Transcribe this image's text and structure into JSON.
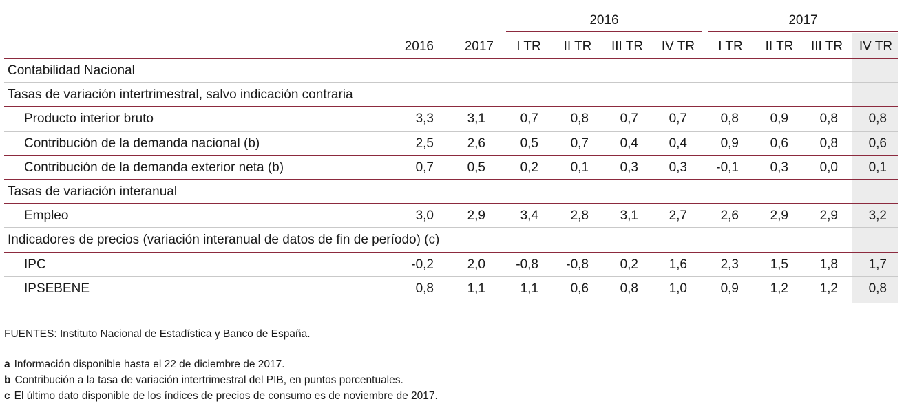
{
  "group_headers": [
    "2016",
    "2017"
  ],
  "columns": [
    "2016",
    "2017",
    "I TR",
    "II TR",
    "III TR",
    "IV TR",
    "I TR",
    "II TR",
    "III TR",
    "IV TR"
  ],
  "sections": [
    {
      "label": "Contabilidad Nacional"
    },
    {
      "label": "Tasas de variación intertrimestral, salvo indicación contraria"
    },
    {
      "label": "Tasas de variación interanual"
    },
    {
      "label": "Indicadores de precios (variación interanual de datos de fin de período) (c)"
    }
  ],
  "rows": [
    {
      "label": "Producto interior bruto",
      "values": [
        "3,3",
        "3,1",
        "0,7",
        "0,8",
        "0,7",
        "0,7",
        "0,8",
        "0,9",
        "0,8",
        "0,8"
      ]
    },
    {
      "label": "Contribución de la demanda nacional (b)",
      "values": [
        "2,5",
        "2,6",
        "0,5",
        "0,7",
        "0,4",
        "0,4",
        "0,9",
        "0,6",
        "0,8",
        "0,6"
      ]
    },
    {
      "label": "Contribución de la demanda exterior neta (b)",
      "values": [
        "0,7",
        "0,5",
        "0,2",
        "0,1",
        "0,3",
        "0,3",
        "-0,1",
        "0,3",
        "0,0",
        "0,1"
      ]
    },
    {
      "label": "Empleo",
      "values": [
        "3,0",
        "2,9",
        "3,4",
        "2,8",
        "3,1",
        "2,7",
        "2,6",
        "2,9",
        "2,9",
        "3,2"
      ]
    },
    {
      "label": "IPC",
      "values": [
        "-0,2",
        "2,0",
        "-0,8",
        "-0,8",
        "0,2",
        "1,6",
        "2,3",
        "1,5",
        "1,8",
        "1,7"
      ]
    },
    {
      "label": "IPSEBENE",
      "values": [
        "0,8",
        "1,1",
        "1,1",
        "0,6",
        "0,8",
        "1,0",
        "0,9",
        "1,2",
        "1,2",
        "0,8"
      ]
    }
  ],
  "sources": "FUENTES: Instituto Nacional de Estadística y Banco de España.",
  "notes": [
    {
      "key": "a",
      "text": "Información disponible hasta el 22 de diciembre de 2017."
    },
    {
      "key": "b",
      "text": "Contribución a la tasa de variación intertrimestral del PIB, en puntos porcentuales."
    },
    {
      "key": "c",
      "text": "El último dato disponible de los índices de precios de consumo es de noviembre de 2017."
    }
  ]
}
